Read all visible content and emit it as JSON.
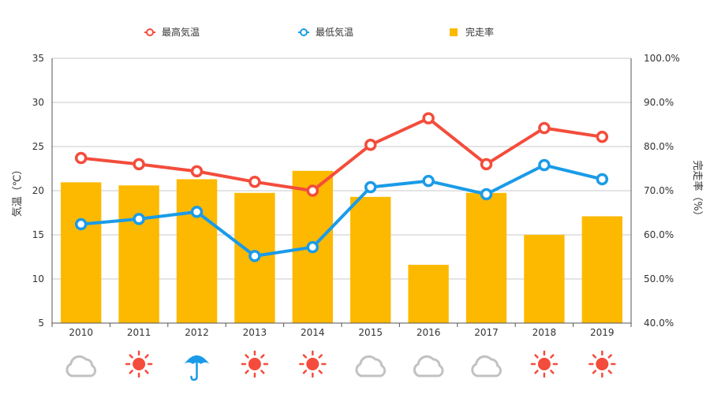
{
  "chart_data": {
    "type": "bar",
    "categories": [
      "2010",
      "2011",
      "2012",
      "2013",
      "2014",
      "2015",
      "2016",
      "2017",
      "2018",
      "2019"
    ],
    "series": [
      {
        "name": "最高気温",
        "type": "line",
        "axis": "left",
        "color": "#f44c3c",
        "values": [
          23.7,
          23.0,
          22.2,
          21.0,
          20.0,
          25.2,
          28.2,
          23.0,
          27.1,
          26.1
        ]
      },
      {
        "name": "最低気温",
        "type": "line",
        "axis": "left",
        "color": "#1a9be8",
        "values": [
          16.2,
          16.8,
          17.6,
          12.6,
          13.6,
          20.4,
          21.1,
          19.6,
          22.9,
          21.3
        ]
      },
      {
        "name": "完走率",
        "type": "bar",
        "axis": "right",
        "color": "#fdb900",
        "values": [
          71.9,
          71.2,
          72.6,
          69.5,
          74.5,
          68.6,
          53.2,
          69.5,
          60.0,
          64.2
        ]
      }
    ],
    "weather_icons": [
      "cloud",
      "sun",
      "umbrella",
      "sun",
      "sun",
      "cloud",
      "cloud",
      "cloud",
      "sun",
      "sun"
    ],
    "y_left": {
      "label": "気温（℃）",
      "range": [
        5,
        35
      ],
      "ticks": [
        "5",
        "10",
        "15",
        "20",
        "25",
        "30",
        "35"
      ]
    },
    "y_right": {
      "label": "完走率（%）",
      "range": [
        40,
        100
      ],
      "ticks": [
        "40.0%",
        "50.0%",
        "60.0%",
        "70.0%",
        "80.0%",
        "90.0%",
        "100.0%"
      ]
    },
    "grid": true,
    "legend_position": "top"
  }
}
